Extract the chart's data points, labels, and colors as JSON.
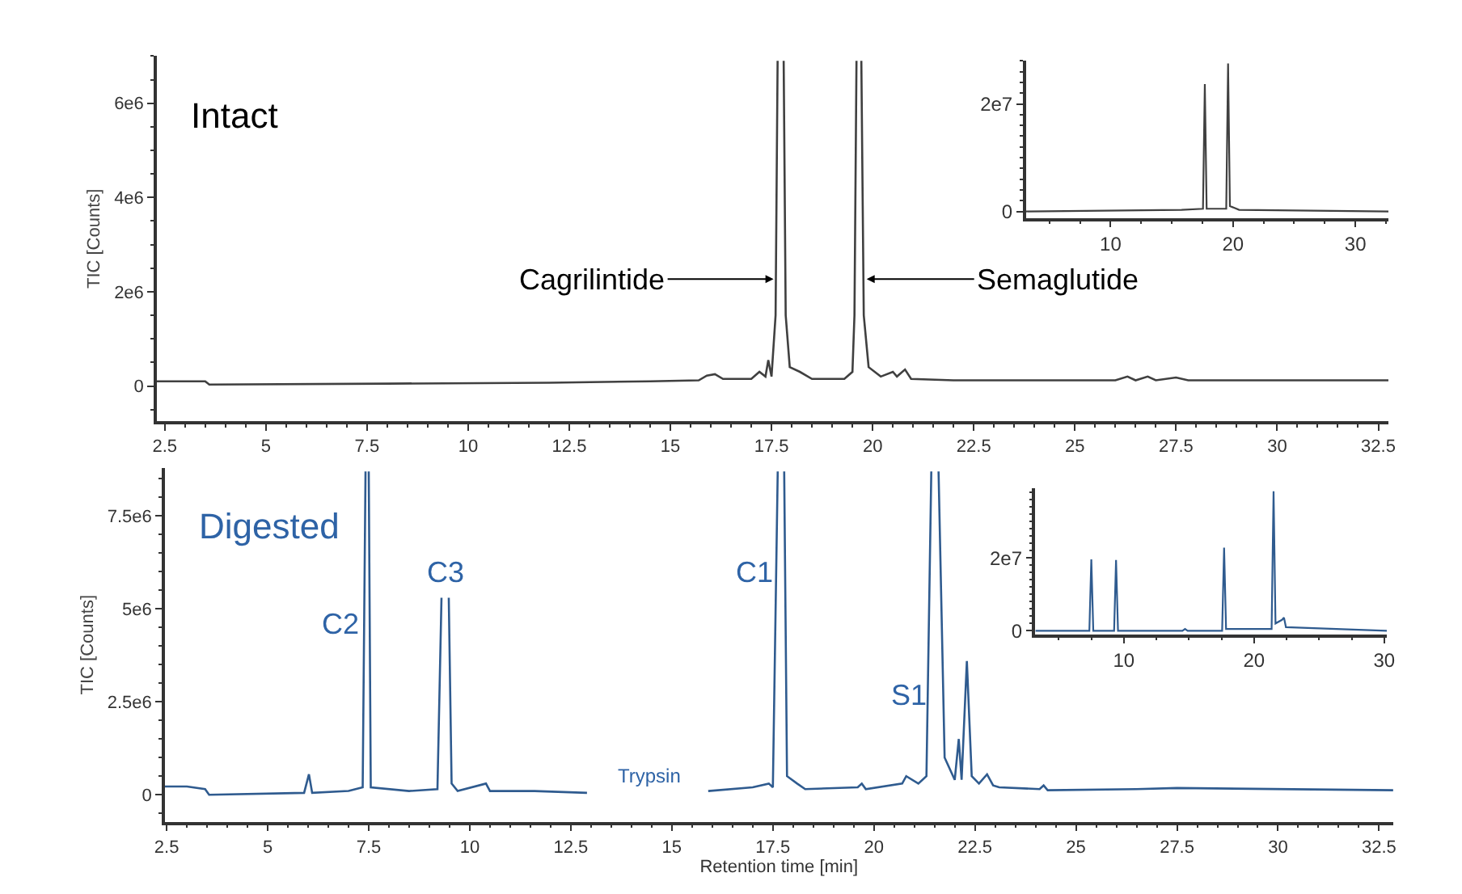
{
  "chart_data": [
    {
      "type": "line",
      "ylabel": "TIC [Counts]",
      "xlim": [
        2.3,
        32.75
      ],
      "ylim": [
        -750000,
        7000000
      ],
      "xticks": [
        2.5,
        5,
        7.5,
        10,
        12.5,
        15,
        17.5,
        20,
        22.5,
        25,
        27.5,
        30,
        32.5
      ],
      "yticks": [
        0,
        {
          "value": 2000000,
          "label": "2e6"
        },
        {
          "value": 4000000,
          "label": "4e6"
        },
        {
          "value": 6000000,
          "label": "6e6"
        }
      ],
      "annotations": [
        "Intact",
        {
          "text": "Cagrilintide",
          "x": 17.55,
          "y": 2270000
        },
        {
          "text": "Semaglutide",
          "x": 19.85,
          "y": 2270000
        }
      ],
      "x": [
        2.3,
        3.5,
        3.6,
        8,
        12,
        14.5,
        15.7,
        15.9,
        16.1,
        16.3,
        17.0,
        17.2,
        17.35,
        17.42,
        17.5,
        17.6,
        17.65,
        17.7,
        17.8,
        17.85,
        17.95,
        18.2,
        18.5,
        19.3,
        19.5,
        19.55,
        19.6,
        19.65,
        19.72,
        19.78,
        19.9,
        20.2,
        20.5,
        20.6,
        20.8,
        20.95,
        22,
        26,
        26.3,
        26.5,
        26.8,
        27,
        27.5,
        27.8,
        32.75
      ],
      "series": [
        {
          "color": "#404040",
          "values": [
            100000,
            100000,
            30000,
            50000,
            70000,
            100000,
            120000,
            220000,
            250000,
            150000,
            150000,
            300000,
            200000,
            550000,
            200000,
            1500000,
            6900000,
            null,
            6900000,
            1500000,
            400000,
            300000,
            150000,
            150000,
            300000,
            1500000,
            6900000,
            null,
            6900000,
            1500000,
            400000,
            200000,
            300000,
            200000,
            350000,
            150000,
            120000,
            120000,
            200000,
            120000,
            200000,
            120000,
            180000,
            120000,
            120000
          ]
        }
      ]
    },
    {
      "type": "line",
      "xlim": [
        3.07,
        32.7
      ],
      "ylim": [
        -1200000,
        28000000
      ],
      "xticks": [
        10,
        20,
        30
      ],
      "yticks": [
        0,
        {
          "value": 20000000,
          "label": "2e7"
        }
      ],
      "x": [
        3.07,
        15.8,
        17.55,
        17.7,
        17.85,
        19.45,
        19.6,
        19.75,
        20.5,
        32.7
      ],
      "series": [
        {
          "color": "#404040",
          "values": [
            0,
            300000,
            500000,
            23700000,
            500000,
            500000,
            27500000,
            1000000,
            300000,
            0
          ]
        }
      ]
    },
    {
      "type": "line",
      "xlabel": "Retention time [min]",
      "ylabel": "TIC [Counts]",
      "xlim": [
        2.45,
        32.85
      ],
      "ylim": [
        -730000,
        8800000
      ],
      "xticks": [
        2.5,
        5,
        7.5,
        10,
        12.5,
        15,
        17.5,
        20,
        22.5,
        25,
        27.5,
        30,
        32.5
      ],
      "yticks": [
        0,
        {
          "value": 2500000,
          "label": "2.5e6"
        },
        {
          "value": 5000000,
          "label": "5e6"
        },
        {
          "value": 7500000,
          "label": "7.5e6"
        }
      ],
      "annotations": [
        "Digested",
        {
          "text": "C2",
          "x": 7.45,
          "y": 4600000
        },
        {
          "text": "C3",
          "x": 9.4,
          "y": 5300000
        },
        {
          "text": "C1",
          "x": 17.7,
          "y": 6000000
        },
        {
          "text": "S1",
          "x": 21.5,
          "y": 2700000
        },
        "Trypsin"
      ],
      "x": [
        2.45,
        3.0,
        3.45,
        3.55,
        5.9,
        6.02,
        6.1,
        7.0,
        7.35,
        7.42,
        7.45,
        7.5,
        7.55,
        8.5,
        9.2,
        9.3,
        9.35,
        9.48,
        9.55,
        9.7,
        10.4,
        10.5,
        11.6,
        12.9,
        13.0,
        15.9,
        17.0,
        17.4,
        17.5,
        17.62,
        17.67,
        17.78,
        17.85,
        18.1,
        18.3,
        19.6,
        19.7,
        19.8,
        20.7,
        20.8,
        21.1,
        21.3,
        21.42,
        21.5,
        21.6,
        21.75,
        22.0,
        22.1,
        22.17,
        22.3,
        22.42,
        22.6,
        22.8,
        22.95,
        23.1,
        24.1,
        24.2,
        24.3,
        26.5,
        27.5,
        32.85
      ],
      "series": [
        {
          "color": "#2f5b8f",
          "values": [
            220000,
            220000,
            150000,
            0,
            50000,
            550000,
            50000,
            100000,
            200000,
            8700000,
            null,
            8700000,
            200000,
            100000,
            150000,
            5300000,
            null,
            5300000,
            300000,
            100000,
            300000,
            100000,
            100000,
            50000,
            null,
            100000,
            200000,
            300000,
            200000,
            8700000,
            null,
            8700000,
            500000,
            300000,
            150000,
            200000,
            300000,
            150000,
            300000,
            500000,
            300000,
            500000,
            8700000,
            null,
            8700000,
            1000000,
            400000,
            1500000,
            400000,
            3600000,
            500000,
            300000,
            550000,
            250000,
            200000,
            150000,
            250000,
            120000,
            150000,
            180000,
            120000
          ]
        }
      ]
    },
    {
      "type": "line",
      "xlim": [
        3.2,
        30.2
      ],
      "ylim": [
        -1000000,
        39000000
      ],
      "xticks": [
        10,
        20,
        30
      ],
      "yticks": [
        0,
        {
          "value": 20000000,
          "label": "2e7"
        }
      ],
      "x": [
        3.2,
        7.35,
        7.5,
        7.65,
        9.25,
        9.4,
        9.55,
        14.5,
        14.7,
        14.9,
        17.55,
        17.7,
        17.85,
        21.35,
        21.5,
        21.65,
        22.15,
        22.3,
        22.45,
        30.2
      ],
      "series": [
        {
          "color": "#2f5b8f",
          "values": [
            0,
            0,
            19600000,
            0,
            0,
            19400000,
            0,
            0,
            500000,
            0,
            0,
            22800000,
            500000,
            500000,
            38300000,
            2000000,
            3000000,
            3600000,
            1000000,
            0
          ]
        }
      ]
    }
  ]
}
